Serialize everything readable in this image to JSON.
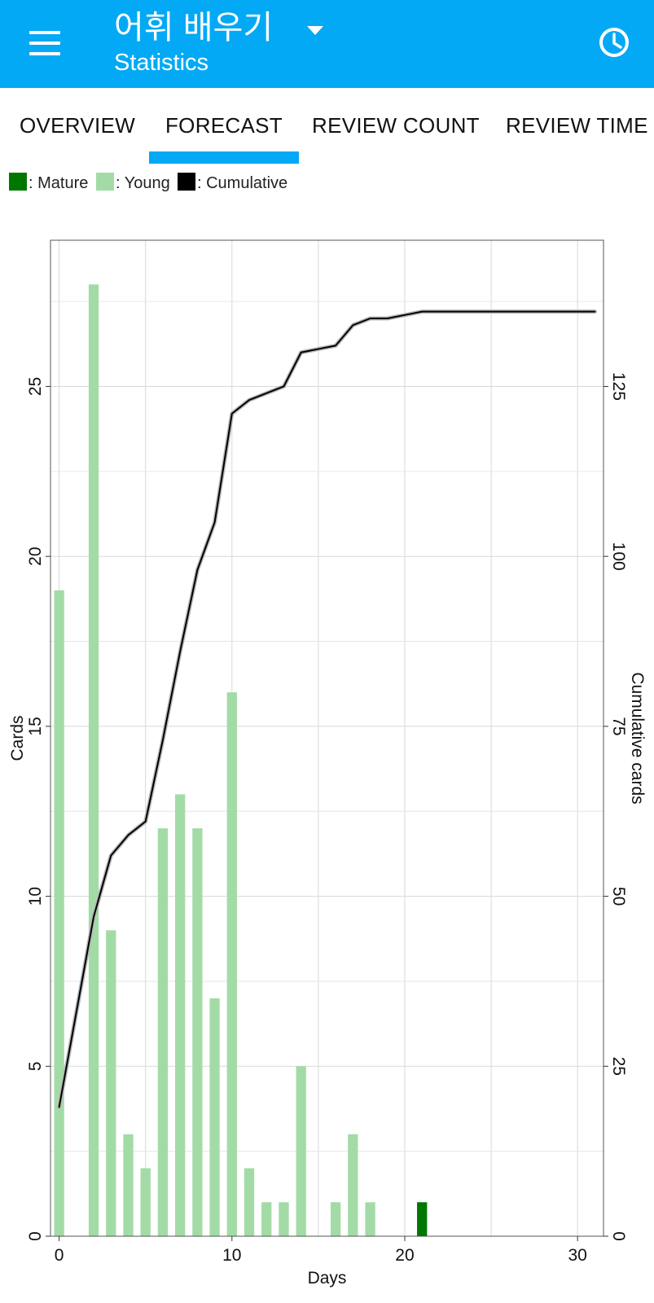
{
  "header": {
    "title": "어휘 배우기",
    "subtitle": "Statistics",
    "menu_icon": "hamburger-menu-icon",
    "dropdown_icon": "dropdown-arrow-icon",
    "time_icon": "clock-icon"
  },
  "tabs": [
    {
      "label": "OVERVIEW",
      "selected": false
    },
    {
      "label": "FORECAST",
      "selected": true
    },
    {
      "label": "REVIEW COUNT",
      "selected": false
    },
    {
      "label": "REVIEW TIME",
      "selected": false
    }
  ],
  "colors": {
    "accent": "#03a9f4",
    "mature": "#007700",
    "young": "#a3dba6",
    "cumulative": "#000000"
  },
  "legend": [
    {
      "label": ": Mature",
      "color": "#007700"
    },
    {
      "label": ": Young",
      "color": "#a3dba6"
    },
    {
      "label": ": Cumulative",
      "color": "#000000"
    }
  ],
  "chart_data": {
    "type": "bar",
    "orientation": "rotated 90° (Days axis along bottom, Cards axis vertical on left)",
    "xlabel": "Days",
    "ylabel": "Cards",
    "y2label": "Cumulative cards",
    "xlim": [
      -0.5,
      31.5
    ],
    "ylim": [
      0,
      29.3
    ],
    "y2lim": [
      0,
      146.5
    ],
    "xticks": [
      0,
      10,
      20,
      30
    ],
    "yticks": [
      0,
      5,
      10,
      15,
      20,
      25
    ],
    "y2ticks": [
      0,
      25,
      50,
      75,
      100,
      125
    ],
    "grid": true,
    "series": [
      {
        "name": "Young",
        "color": "#a3dba6",
        "x": [
          0,
          2,
          3,
          4,
          5,
          6,
          7,
          8,
          9,
          10,
          11,
          12,
          13,
          14,
          16,
          17,
          18
        ],
        "values": [
          19,
          28,
          9,
          3,
          2,
          12,
          13,
          12,
          7,
          16,
          2,
          1,
          1,
          5,
          1,
          3,
          1
        ]
      },
      {
        "name": "Mature",
        "color": "#007700",
        "x": [
          21
        ],
        "values": [
          1
        ]
      },
      {
        "name": "Cumulative",
        "color": "#000000",
        "type": "line",
        "x": [
          0,
          2,
          3,
          4,
          5,
          6,
          7,
          8,
          9,
          10,
          11,
          12,
          13,
          14,
          15,
          16,
          17,
          18,
          19,
          20,
          21,
          22,
          23,
          24,
          25,
          26,
          27,
          28,
          29,
          30,
          31
        ],
        "values": [
          19,
          47,
          56,
          59,
          61,
          73,
          86,
          98,
          105,
          121,
          123,
          124,
          125,
          130,
          130.5,
          131,
          134,
          135,
          135,
          135.5,
          136,
          136,
          136,
          136,
          136,
          136,
          136,
          136,
          136,
          136,
          136
        ]
      }
    ]
  }
}
